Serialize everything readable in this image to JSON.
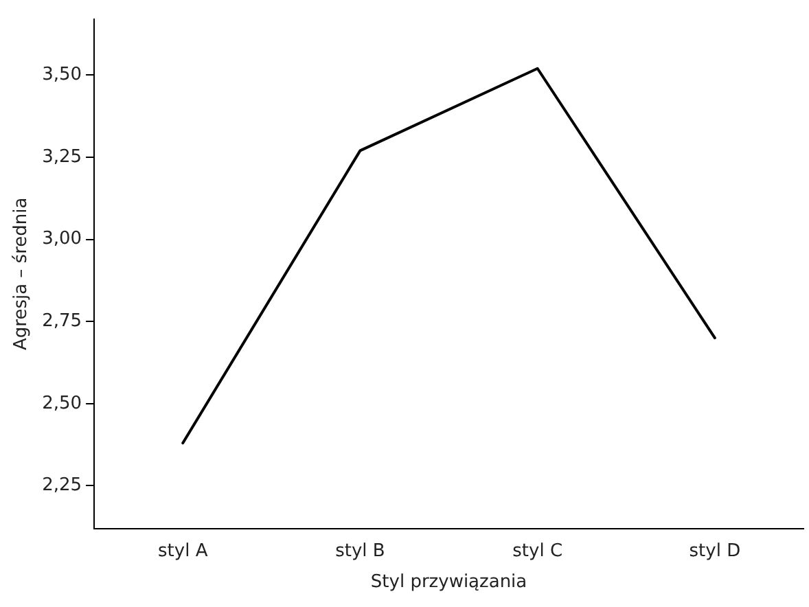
{
  "chart_data": {
    "type": "line",
    "xlabel": "Styl przywiązania",
    "ylabel": "Agresja – średnia",
    "categories": [
      "styl A",
      "styl B",
      "styl C",
      "styl D"
    ],
    "series": [
      {
        "color": "#000000",
        "values": [
          2.38,
          3.27,
          3.52,
          2.7
        ]
      }
    ],
    "ylim": [
      2.12,
      3.67
    ],
    "yticks": [
      {
        "value": 2.25,
        "label": "2,25"
      },
      {
        "value": 2.5,
        "label": "2,50"
      },
      {
        "value": 2.75,
        "label": "2,75"
      },
      {
        "value": 3,
        "label": "3,00"
      },
      {
        "value": 3.25,
        "label": "3,25"
      },
      {
        "value": 3.5,
        "label": "3,50"
      }
    ],
    "grid": false,
    "legend": false,
    "marker": "none",
    "line_style": "solid"
  }
}
